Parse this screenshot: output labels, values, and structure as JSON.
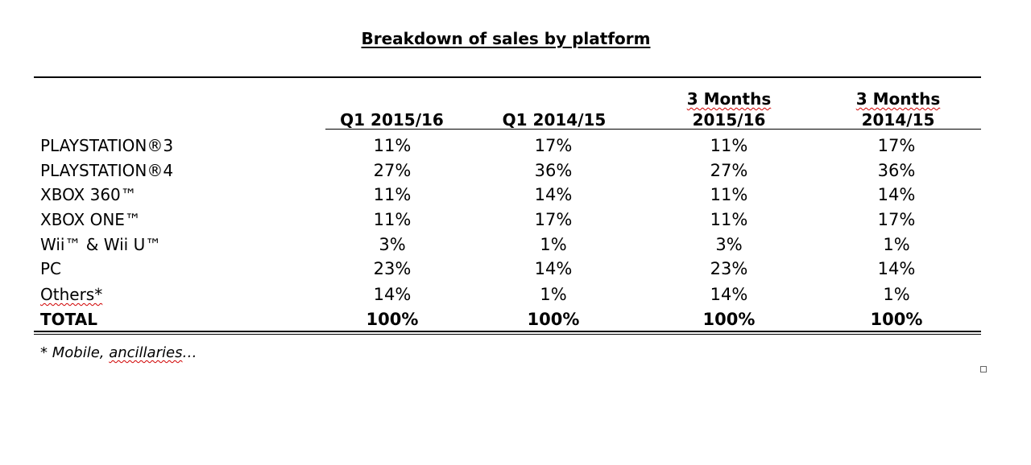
{
  "title": "Breakdown of sales by platform",
  "columns": [
    {
      "line1": "",
      "line2": "Q1 2015/16"
    },
    {
      "line1": "",
      "line2": "Q1 2014/15"
    },
    {
      "line1": "3 Months",
      "line2": "2015/16"
    },
    {
      "line1": "3 Months",
      "line2": "2014/15"
    }
  ],
  "rows": [
    {
      "label": "PLAYSTATION®3",
      "values": [
        "11%",
        "17%",
        "11%",
        "17%"
      ]
    },
    {
      "label": "PLAYSTATION®4",
      "values": [
        "27%",
        "36%",
        "27%",
        "36%"
      ]
    },
    {
      "label": "XBOX 360™",
      "values": [
        "11%",
        "14%",
        "11%",
        "14%"
      ]
    },
    {
      "label": "XBOX ONE™",
      "values": [
        "11%",
        "17%",
        "11%",
        "17%"
      ]
    },
    {
      "label": "Wii™ & Wii U™",
      "values": [
        "3%",
        "1%",
        "3%",
        "1%"
      ]
    },
    {
      "label": "PC",
      "values": [
        "23%",
        "14%",
        "23%",
        "14%"
      ]
    },
    {
      "label": "Others*",
      "values": [
        "14%",
        "1%",
        "14%",
        "1%"
      ]
    },
    {
      "label": "TOTAL",
      "values": [
        "100%",
        "100%",
        "100%",
        "100%"
      ]
    }
  ],
  "footnote": {
    "prefix": "* Mobile, ",
    "word": "ancillaries",
    "suffix": "…"
  }
}
